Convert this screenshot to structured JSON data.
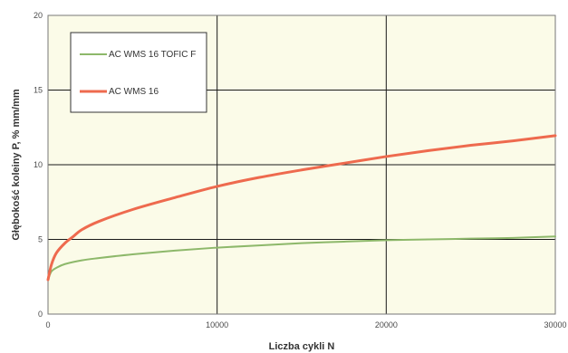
{
  "chart_data": {
    "type": "line",
    "title": "",
    "xlabel": "Liczba cykli N",
    "ylabel": "Głębokość koleiny P, % mm/mm",
    "xlim": [
      0,
      30000
    ],
    "ylim": [
      0,
      20
    ],
    "x_ticks": [
      0,
      10000,
      20000,
      30000
    ],
    "x_tick_labels": [
      "0",
      "10000",
      "20000",
      "30000"
    ],
    "y_ticks": [
      0,
      5,
      10,
      15,
      20
    ],
    "y_tick_labels": [
      "0",
      "5",
      "10",
      "15",
      "20"
    ],
    "grid": true,
    "plot_background": "#fbfbe8",
    "legend_position": "top-left",
    "series": [
      {
        "name": "AC WMS 16 TOFIC F",
        "color": "#8db86a",
        "x": [
          0,
          200,
          500,
          1000,
          2000,
          3000,
          5000,
          7500,
          10000,
          12500,
          15000,
          17500,
          20000,
          22500,
          25000,
          27500,
          30000
        ],
        "y": [
          2.3,
          2.85,
          3.1,
          3.35,
          3.6,
          3.75,
          4.0,
          4.25,
          4.45,
          4.6,
          4.75,
          4.85,
          4.95,
          5.0,
          5.05,
          5.1,
          5.2
        ]
      },
      {
        "name": "AC WMS 16",
        "color": "#ee6a4e",
        "x": [
          0,
          200,
          500,
          1000,
          1500,
          2000,
          3000,
          5000,
          7500,
          10000,
          12500,
          15000,
          17500,
          20000,
          22500,
          25000,
          27500,
          30000
        ],
        "y": [
          2.3,
          3.3,
          4.1,
          4.75,
          5.2,
          5.65,
          6.2,
          7.0,
          7.8,
          8.55,
          9.15,
          9.65,
          10.1,
          10.55,
          10.95,
          11.3,
          11.6,
          11.95
        ]
      }
    ]
  }
}
